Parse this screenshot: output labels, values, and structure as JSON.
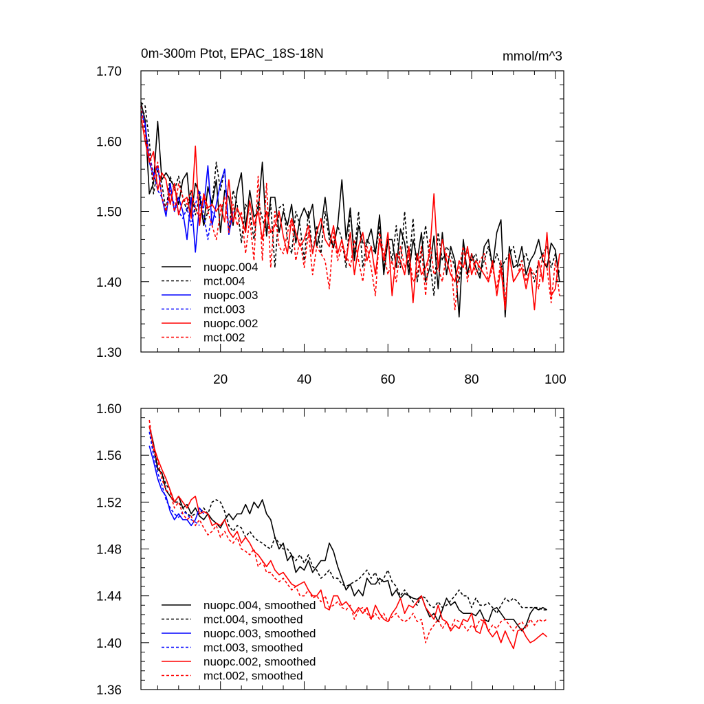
{
  "chart_data": [
    {
      "type": "line",
      "title": "0m-300m Ptot, EPAC_18S-18N",
      "units": "mmol/m^3",
      "xlim": [
        1,
        102
      ],
      "ylim": [
        1.3,
        1.7
      ],
      "yticks": [
        "1.30",
        "1.40",
        "1.50",
        "1.60",
        "1.70"
      ],
      "xticks": [
        "20",
        "40",
        "60",
        "80",
        "100"
      ],
      "legend_position": "bottom-left",
      "series": [
        {
          "name": "nuopc.004",
          "color": "#000000",
          "dash": "solid",
          "x_start": 1,
          "values": [
            1.655,
            1.63,
            1.525,
            1.54,
            1.628,
            1.545,
            1.555,
            1.545,
            1.535,
            1.51,
            1.545,
            1.555,
            1.492,
            1.54,
            1.525,
            1.48,
            1.535,
            1.51,
            1.545,
            1.47,
            1.53,
            1.52,
            1.48,
            1.53,
            1.555,
            1.475,
            1.53,
            1.492,
            1.5,
            1.57,
            1.465,
            1.52,
            1.52,
            1.47,
            1.5,
            1.48,
            1.51,
            1.455,
            1.49,
            1.505,
            1.49,
            1.51,
            1.45,
            1.475,
            1.52,
            1.47,
            1.448,
            1.48,
            1.545,
            1.46,
            1.505,
            1.43,
            1.48,
            1.455,
            1.455,
            1.475,
            1.44,
            1.495,
            1.41,
            1.46,
            1.46,
            1.42,
            1.475,
            1.455,
            1.41,
            1.46,
            1.43,
            1.47,
            1.4,
            1.42,
            1.465,
            1.39,
            1.47,
            1.41,
            1.45,
            1.43,
            1.35,
            1.46,
            1.41,
            1.44,
            1.42,
            1.405,
            1.45,
            1.46,
            1.42,
            1.47,
            1.488,
            1.35,
            1.45,
            1.42,
            1.425,
            1.45,
            1.41,
            1.43,
            1.44,
            1.46,
            1.43,
            1.42,
            1.455,
            1.445,
            1.4
          ]
        },
        {
          "name": "mct.004",
          "color": "#000000",
          "dash": "dashed",
          "x_start": 1,
          "values": [
            1.655,
            1.65,
            1.6,
            1.525,
            1.56,
            1.54,
            1.5,
            1.55,
            1.53,
            1.55,
            1.52,
            1.5,
            1.53,
            1.495,
            1.52,
            1.48,
            1.5,
            1.51,
            1.57,
            1.53,
            1.56,
            1.47,
            1.53,
            1.51,
            1.455,
            1.51,
            1.5,
            1.46,
            1.515,
            1.49,
            1.47,
            1.51,
            1.42,
            1.505,
            1.51,
            1.46,
            1.44,
            1.5,
            1.48,
            1.43,
            1.5,
            1.44,
            1.48,
            1.44,
            1.5,
            1.46,
            1.45,
            1.48,
            1.46,
            1.42,
            1.5,
            1.44,
            1.5,
            1.42,
            1.46,
            1.45,
            1.44,
            1.48,
            1.42,
            1.46,
            1.43,
            1.48,
            1.42,
            1.5,
            1.42,
            1.49,
            1.4,
            1.44,
            1.48,
            1.43,
            1.38,
            1.47,
            1.43,
            1.45,
            1.44,
            1.42,
            1.4,
            1.45,
            1.44,
            1.43,
            1.44,
            1.41,
            1.43,
            1.45,
            1.42,
            1.44,
            1.42,
            1.43,
            1.44,
            1.45,
            1.42,
            1.43,
            1.44,
            1.42,
            1.4,
            1.43,
            1.44,
            1.45,
            1.42,
            1.44,
            1.41
          ]
        },
        {
          "name": "nuopc.003",
          "color": "#0000ff",
          "dash": "solid",
          "x_start": 1,
          "values": [
            1.64,
            1.625,
            1.57,
            1.55,
            1.565,
            1.52,
            1.493,
            1.54,
            1.5,
            1.52,
            1.5,
            1.46,
            1.52,
            1.442,
            1.51,
            1.505,
            1.565,
            1.48,
            1.51,
            1.54,
            1.56,
            1.467,
            1.5
          ]
        },
        {
          "name": "mct.003",
          "color": "#0000ff",
          "dash": "dashed",
          "x_start": 1,
          "values": [
            1.65,
            1.62,
            1.58,
            1.555,
            1.53,
            1.52,
            1.5,
            1.525,
            1.51,
            1.5,
            1.49,
            1.505,
            1.48,
            1.51,
            1.53,
            1.495,
            1.46,
            1.5,
            1.49
          ]
        },
        {
          "name": "nuopc.002",
          "color": "#ff0000",
          "dash": "solid",
          "x_start": 1,
          "values": [
            1.635,
            1.6,
            1.57,
            1.585,
            1.53,
            1.555,
            1.545,
            1.51,
            1.54,
            1.495,
            1.515,
            1.52,
            1.49,
            1.593,
            1.48,
            1.525,
            1.505,
            1.51,
            1.5,
            1.51,
            1.485,
            1.545,
            1.485,
            1.505,
            1.49,
            1.47,
            1.515,
            1.48,
            1.5,
            1.46,
            1.5,
            1.47,
            1.48,
            1.5,
            1.465,
            1.44,
            1.49,
            1.47,
            1.45,
            1.46,
            1.48,
            1.44,
            1.47,
            1.49,
            1.46,
            1.45,
            1.48,
            1.44,
            1.46,
            1.43,
            1.47,
            1.41,
            1.45,
            1.47,
            1.43,
            1.45,
            1.41,
            1.46,
            1.43,
            1.47,
            1.38,
            1.44,
            1.43,
            1.41,
            1.45,
            1.37,
            1.44,
            1.41,
            1.42,
            1.44,
            1.525,
            1.42,
            1.46,
            1.43,
            1.41,
            1.4,
            1.43,
            1.42,
            1.45,
            1.41,
            1.43,
            1.42,
            1.41,
            1.4,
            1.43,
            1.38,
            1.42,
            1.36,
            1.44,
            1.4,
            1.41,
            1.42,
            1.39,
            1.42,
            1.36,
            1.43,
            1.4,
            1.47,
            1.38,
            1.39,
            1.44
          ]
        },
        {
          "name": "mct.002",
          "color": "#ff0000",
          "dash": "dashed",
          "x_start": 1,
          "values": [
            1.65,
            1.61,
            1.58,
            1.545,
            1.57,
            1.52,
            1.5,
            1.53,
            1.5,
            1.54,
            1.52,
            1.51,
            1.53,
            1.505,
            1.49,
            1.52,
            1.5,
            1.48,
            1.46,
            1.5,
            1.52,
            1.47,
            1.51,
            1.48,
            1.5,
            1.44,
            1.49,
            1.43,
            1.55,
            1.43,
            1.54,
            1.42,
            1.5,
            1.45,
            1.44,
            1.47,
            1.49,
            1.43,
            1.46,
            1.42,
            1.47,
            1.41,
            1.45,
            1.44,
            1.43,
            1.39,
            1.47,
            1.43,
            1.45,
            1.44,
            1.42,
            1.46,
            1.43,
            1.4,
            1.45,
            1.42,
            1.38,
            1.47,
            1.44,
            1.41,
            1.43,
            1.4,
            1.45,
            1.42,
            1.44,
            1.4,
            1.41,
            1.45,
            1.38,
            1.46,
            1.41,
            1.42,
            1.4,
            1.44,
            1.43,
            1.36,
            1.42,
            1.45,
            1.4,
            1.44,
            1.41,
            1.43,
            1.44,
            1.4,
            1.42,
            1.39,
            1.43,
            1.37,
            1.44,
            1.4,
            1.41,
            1.43,
            1.4,
            1.42,
            1.41,
            1.39,
            1.44,
            1.42,
            1.37,
            1.43,
            1.38
          ]
        }
      ]
    },
    {
      "type": "line",
      "title": "",
      "xlim": [
        1,
        102
      ],
      "ylim": [
        1.36,
        1.6
      ],
      "yticks": [
        "1.36",
        "1.40",
        "1.44",
        "1.48",
        "1.52",
        "1.56",
        "1.60"
      ],
      "legend_position": "bottom-left",
      "series": [
        {
          "name": "nuopc.004, smoothed",
          "color": "#000000",
          "dash": "solid",
          "x_start": 3,
          "values": [
            1.585,
            1.57,
            1.548,
            1.545,
            1.53,
            1.525,
            1.52,
            1.525,
            1.515,
            1.518,
            1.51,
            1.515,
            1.508,
            1.505,
            1.51,
            1.505,
            1.502,
            1.498,
            1.505,
            1.51,
            1.505,
            1.51,
            1.51,
            1.518,
            1.51,
            1.52,
            1.515,
            1.522,
            1.51,
            1.505,
            1.49,
            1.48,
            1.485,
            1.47,
            1.475,
            1.46,
            1.465,
            1.462,
            1.47,
            1.46,
            1.465,
            1.47,
            1.47,
            1.485,
            1.478,
            1.465,
            1.455,
            1.445,
            1.45,
            1.44,
            1.445,
            1.44,
            1.455,
            1.45,
            1.45,
            1.455,
            1.452,
            1.453,
            1.44,
            1.445,
            1.438,
            1.442,
            1.44,
            1.438,
            1.437,
            1.44,
            1.43,
            1.422,
            1.425,
            1.418,
            1.428,
            1.438,
            1.432,
            1.435,
            1.428,
            1.425,
            1.425,
            1.425,
            1.423,
            1.428,
            1.42,
            1.418,
            1.428,
            1.43,
            1.425,
            1.42,
            1.42,
            1.42,
            1.415,
            1.41,
            1.415,
            1.425,
            1.43,
            1.428,
            1.43,
            1.428
          ]
        },
        {
          "name": "mct.004, smoothed",
          "color": "#000000",
          "dash": "dashed",
          "x_start": 3,
          "values": [
            1.585,
            1.565,
            1.55,
            1.545,
            1.535,
            1.53,
            1.52,
            1.52,
            1.515,
            1.51,
            1.508,
            1.51,
            1.51,
            1.515,
            1.51,
            1.52,
            1.522,
            1.52,
            1.512,
            1.5,
            1.495,
            1.5,
            1.498,
            1.49,
            1.495,
            1.49,
            1.487,
            1.485,
            1.482,
            1.48,
            1.49,
            1.485,
            1.48,
            1.48,
            1.475,
            1.47,
            1.475,
            1.468,
            1.475,
            1.465,
            1.462,
            1.455,
            1.458,
            1.462,
            1.455,
            1.455,
            1.45,
            1.448,
            1.45,
            1.452,
            1.454,
            1.458,
            1.462,
            1.455,
            1.46,
            1.45,
            1.455,
            1.462,
            1.452,
            1.448,
            1.44,
            1.445,
            1.44,
            1.435,
            1.432,
            1.44,
            1.438,
            1.432,
            1.43,
            1.435,
            1.43,
            1.432,
            1.436,
            1.44,
            1.445,
            1.44,
            1.44,
            1.43,
            1.438,
            1.432,
            1.432,
            1.434,
            1.43,
            1.425,
            1.432,
            1.438,
            1.435,
            1.438,
            1.435,
            1.43,
            1.43,
            1.43,
            1.43,
            1.43,
            1.428,
            1.428
          ]
        },
        {
          "name": "nuopc.003, smoothed",
          "color": "#0000ff",
          "dash": "solid",
          "x_start": 3,
          "values": [
            1.568,
            1.555,
            1.54,
            1.53,
            1.525,
            1.512,
            1.505,
            1.51,
            1.505,
            1.505,
            1.5,
            1.505,
            1.515,
            1.51
          ]
        },
        {
          "name": "mct.003, smoothed",
          "color": "#0000ff",
          "dash": "dashed",
          "x_start": 3,
          "values": [
            1.58,
            1.56,
            1.545,
            1.535,
            1.522,
            1.515,
            1.51,
            1.507,
            1.512,
            1.51,
            1.505,
            1.503,
            1.5
          ]
        },
        {
          "name": "nuopc.002, smoothed",
          "color": "#ff0000",
          "dash": "solid",
          "x_start": 3,
          "values": [
            1.585,
            1.568,
            1.557,
            1.548,
            1.54,
            1.53,
            1.52,
            1.525,
            1.52,
            1.515,
            1.522,
            1.525,
            1.51,
            1.512,
            1.51,
            1.5,
            1.502,
            1.5,
            1.505,
            1.495,
            1.49,
            1.495,
            1.485,
            1.49,
            1.485,
            1.478,
            1.475,
            1.47,
            1.465,
            1.47,
            1.462,
            1.458,
            1.46,
            1.455,
            1.45,
            1.448,
            1.45,
            1.452,
            1.445,
            1.44,
            1.44,
            1.445,
            1.43,
            1.428,
            1.44,
            1.44,
            1.432,
            1.435,
            1.43,
            1.425,
            1.43,
            1.425,
            1.43,
            1.42,
            1.432,
            1.425,
            1.42,
            1.418,
            1.425,
            1.43,
            1.438,
            1.425,
            1.432,
            1.43,
            1.435,
            1.44,
            1.43,
            1.425,
            1.42,
            1.432,
            1.42,
            1.418,
            1.41,
            1.415,
            1.412,
            1.42,
            1.418,
            1.425,
            1.41,
            1.408,
            1.42,
            1.41,
            1.405,
            1.41,
            1.4,
            1.41,
            1.402,
            1.395,
            1.41,
            1.412,
            1.405,
            1.4,
            1.402,
            1.405,
            1.408,
            1.405
          ]
        },
        {
          "name": "mct.002, smoothed",
          "color": "#ff0000",
          "dash": "dashed",
          "x_start": 3,
          "values": [
            1.59,
            1.565,
            1.555,
            1.54,
            1.53,
            1.528,
            1.515,
            1.52,
            1.51,
            1.505,
            1.508,
            1.5,
            1.505,
            1.498,
            1.492,
            1.495,
            1.5,
            1.49,
            1.495,
            1.488,
            1.485,
            1.49,
            1.48,
            1.478,
            1.475,
            1.48,
            1.465,
            1.47,
            1.46,
            1.46,
            1.455,
            1.452,
            1.455,
            1.45,
            1.445,
            1.448,
            1.44,
            1.44,
            1.445,
            1.438,
            1.44,
            1.435,
            1.44,
            1.43,
            1.432,
            1.435,
            1.43,
            1.428,
            1.432,
            1.42,
            1.428,
            1.43,
            1.425,
            1.42,
            1.425,
            1.42,
            1.425,
            1.418,
            1.422,
            1.425,
            1.42,
            1.418,
            1.42,
            1.425,
            1.418,
            1.42,
            1.4,
            1.41,
            1.415,
            1.42,
            1.412,
            1.418,
            1.412,
            1.42,
            1.418,
            1.415,
            1.41,
            1.415,
            1.412,
            1.42,
            1.418,
            1.41,
            1.415,
            1.412,
            1.418,
            1.42,
            1.415,
            1.41,
            1.415,
            1.418,
            1.412,
            1.42,
            1.415,
            1.42,
            1.418,
            1.42
          ]
        }
      ]
    }
  ]
}
